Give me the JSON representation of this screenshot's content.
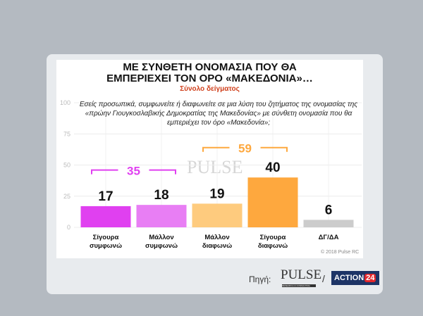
{
  "title_line1": "ΜΕ ΣΥΝΘΕΤΗ ΟΝΟΜΑΣΙΑ ΠΟΥ ΘΑ",
  "title_line2": "ΕΜΠΕΡΙΕΧΕΙ ΤΟΝ ΟΡΟ «ΜΑΚΕΔΟΝΙΑ»…",
  "subtitle": "Σύνολο δείγματος",
  "question": "Εσείς προσωπικά, συμφωνείτε ή διαφωνείτε σε μια λύση του ζητήματος της ονομασίας της «πρώην Γιουγκοσλαβικής Δημοκρατίας της Μακεδονίας» με σύνθετη ονομασία που θα εμπεριέχει τον όρο «Μακεδονία»;",
  "credit": "© 2018 Pulse RC",
  "source_label": "Πηγή:",
  "pulse_logo": "PULSE",
  "pulse_logo_sub": "RESEARCH & CONSULTING",
  "action_logo": "ACTION",
  "action_logo_num": "24",
  "watermark": "PULSE",
  "chart_data": {
    "type": "bar",
    "categories": [
      [
        "Σίγουρα",
        "συμφωνώ"
      ],
      [
        "Μάλλον",
        "συμφωνώ"
      ],
      [
        "Μάλλον",
        "διαφωνώ"
      ],
      [
        "Σίγουρα",
        "διαφωνώ"
      ],
      [
        "ΔΓ/ΔΑ",
        ""
      ]
    ],
    "values": [
      17,
      18,
      19,
      40,
      6
    ],
    "colors": [
      "#e040f0",
      "#e87ef4",
      "#fecb7e",
      "#fea83e",
      "#cccccc"
    ],
    "ylim": [
      0,
      100
    ],
    "yticks": [
      0,
      25,
      50,
      75,
      100
    ],
    "grid": true,
    "groups": [
      {
        "label": "35",
        "from": 0,
        "to": 1,
        "color": "#e040f0",
        "level": 46
      },
      {
        "label": "59",
        "from": 2,
        "to": 3,
        "color": "#fea83e",
        "level": 64
      }
    ]
  }
}
